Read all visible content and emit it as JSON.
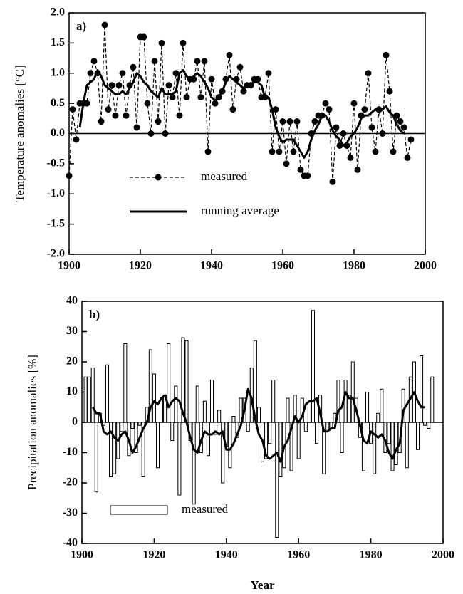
{
  "chart_data": [
    {
      "type": "line",
      "panel_label": "a)",
      "ylabel": "Temperature anomalies [°C]",
      "xlim": [
        1900,
        2000
      ],
      "ylim": [
        -2,
        2
      ],
      "xticks": [
        1900,
        1920,
        1940,
        1960,
        1980,
        2000
      ],
      "yticks": [
        {
          "value": -2,
          "label": "-2.0"
        },
        -1.5,
        {
          "value": -1,
          "label": "-1.0"
        },
        -0.5,
        {
          "value": 0,
          "label": "0.0"
        },
        0.5,
        {
          "value": 1,
          "label": "1.0"
        },
        1.5,
        {
          "value": 2,
          "label": "2.0"
        }
      ],
      "legend": "lower center",
      "x": [
        1900,
        1901,
        1902,
        1903,
        1904,
        1905,
        1906,
        1907,
        1908,
        1909,
        1910,
        1911,
        1912,
        1913,
        1914,
        1915,
        1916,
        1917,
        1918,
        1919,
        1920,
        1921,
        1922,
        1923,
        1924,
        1925,
        1926,
        1927,
        1928,
        1929,
        1930,
        1931,
        1932,
        1933,
        1934,
        1935,
        1936,
        1937,
        1938,
        1939,
        1940,
        1941,
        1942,
        1943,
        1944,
        1945,
        1946,
        1947,
        1948,
        1949,
        1950,
        1951,
        1952,
        1953,
        1954,
        1955,
        1956,
        1957,
        1958,
        1959,
        1960,
        1961,
        1962,
        1963,
        1964,
        1965,
        1966,
        1967,
        1968,
        1969,
        1970,
        1971,
        1972,
        1973,
        1974,
        1975,
        1976,
        1977,
        1978,
        1979,
        1980,
        1981,
        1982,
        1983,
        1984,
        1985,
        1986,
        1987,
        1988,
        1989,
        1990,
        1991,
        1992,
        1993,
        1994,
        1995,
        1996
      ],
      "series": [
        {
          "name": "measured",
          "type": "line",
          "color": "#000000",
          "dash": true,
          "marker": true,
          "values": [
            -0.7,
            0.4,
            -0.1,
            0.5,
            0.5,
            0.5,
            1.0,
            1.2,
            1.0,
            0.2,
            1.8,
            0.4,
            0.8,
            0.3,
            0.8,
            1.0,
            0.3,
            0.8,
            1.1,
            0.1,
            1.6,
            1.6,
            0.5,
            0.0,
            1.2,
            0.2,
            1.5,
            0.0,
            0.8,
            0.6,
            1.0,
            0.3,
            1.5,
            0.6,
            0.9,
            0.9,
            1.2,
            0.6,
            1.2,
            -0.3,
            0.9,
            0.5,
            0.6,
            0.7,
            0.9,
            1.3,
            0.4,
            0.9,
            1.1,
            0.7,
            0.8,
            0.8,
            0.9,
            0.9,
            0.6,
            0.6,
            1.0,
            -0.3,
            0.4,
            -0.3,
            0.2,
            -0.5,
            0.2,
            -0.3,
            0.2,
            -0.6,
            -0.7,
            -0.7,
            0.0,
            0.2,
            0.3,
            0.3,
            0.5,
            0.4,
            -0.8,
            0.1,
            -0.2,
            0.0,
            -0.2,
            -0.4,
            0.5,
            -0.6,
            0.3,
            0.4,
            1.0,
            0.1,
            -0.3,
            0.4,
            0.0,
            1.3,
            0.7,
            -0.3,
            0.3,
            0.2,
            0.1,
            -0.4,
            -0.1
          ]
        },
        {
          "name": "running average",
          "type": "line",
          "color": "#000000",
          "dash": false,
          "marker": false,
          "values": [
            null,
            null,
            null,
            0.1,
            0.5,
            0.8,
            0.85,
            0.9,
            1.05,
            0.95,
            0.8,
            0.75,
            0.7,
            0.65,
            0.65,
            0.7,
            0.65,
            0.75,
            0.85,
            1.0,
            0.95,
            0.85,
            0.8,
            0.7,
            0.65,
            0.6,
            0.75,
            0.65,
            0.65,
            0.65,
            0.7,
            1.0,
            1.05,
            0.95,
            0.9,
            0.95,
            1.0,
            0.95,
            0.85,
            0.75,
            0.6,
            0.55,
            0.6,
            0.7,
            0.85,
            0.95,
            0.9,
            0.85,
            0.8,
            0.75,
            0.8,
            0.8,
            0.85,
            0.85,
            0.8,
            0.6,
            0.6,
            0.4,
            0.1,
            -0.05,
            -0.15,
            -0.1,
            -0.1,
            -0.1,
            -0.2,
            -0.3,
            -0.4,
            -0.3,
            -0.1,
            0.05,
            0.15,
            0.3,
            0.3,
            0.2,
            0.05,
            -0.05,
            -0.1,
            -0.2,
            -0.15,
            -0.05,
            0.0,
            0.1,
            0.25,
            0.3,
            0.3,
            0.35,
            0.4,
            0.35,
            0.4,
            0.45,
            0.35,
            0.3,
            0.15,
            0.05,
            0.0,
            null,
            null
          ]
        }
      ]
    },
    {
      "type": "bar",
      "panel_label": "b)",
      "ylabel": "Precipitation anomalies [%]",
      "xlabel": "Year",
      "xlim": [
        1900,
        2000
      ],
      "ylim": [
        -40,
        40
      ],
      "xticks": [
        1900,
        1920,
        1940,
        1960,
        1980,
        2000
      ],
      "yticks": [
        -40,
        -30,
        -20,
        -10,
        0,
        10,
        20,
        30,
        40
      ],
      "legend": "lower left",
      "x": [
        1901,
        1902,
        1903,
        1904,
        1905,
        1906,
        1907,
        1908,
        1909,
        1910,
        1911,
        1912,
        1913,
        1914,
        1915,
        1916,
        1917,
        1918,
        1919,
        1920,
        1921,
        1922,
        1923,
        1924,
        1925,
        1926,
        1927,
        1928,
        1929,
        1930,
        1931,
        1932,
        1933,
        1934,
        1935,
        1936,
        1937,
        1938,
        1939,
        1940,
        1941,
        1942,
        1943,
        1944,
        1945,
        1946,
        1947,
        1948,
        1949,
        1950,
        1951,
        1952,
        1953,
        1954,
        1955,
        1956,
        1957,
        1958,
        1959,
        1960,
        1961,
        1962,
        1963,
        1964,
        1965,
        1966,
        1967,
        1968,
        1969,
        1970,
        1971,
        1972,
        1973,
        1974,
        1975,
        1976,
        1977,
        1978,
        1979,
        1980,
        1981,
        1982,
        1983,
        1984,
        1985,
        1986,
        1987,
        1988,
        1989,
        1990,
        1991,
        1992,
        1993,
        1994,
        1995,
        1996,
        1997
      ],
      "series": [
        {
          "name": "measured",
          "type": "bar",
          "color": "#000000",
          "fill": "#ffffff",
          "values": [
            15,
            15,
            18,
            -23,
            3,
            -1,
            19,
            -18,
            -17,
            -12,
            -3,
            26,
            -11,
            -2,
            -10,
            -1,
            -18,
            5,
            24,
            16,
            -15,
            8,
            9,
            26,
            -6,
            12,
            -24,
            28,
            27,
            -6,
            -27,
            12,
            -10,
            7,
            -11,
            14,
            -4,
            4,
            -20,
            -8,
            -15,
            2,
            -5,
            8,
            8,
            -3,
            18,
            27,
            5,
            -13,
            -12,
            -7,
            14,
            -38,
            -18,
            -15,
            8,
            -16,
            9,
            -12,
            8,
            -3,
            7,
            37,
            -7,
            9,
            -17,
            -3,
            -2,
            3,
            14,
            -10,
            14,
            9,
            20,
            8,
            -5,
            -16,
            10,
            -7,
            -17,
            3,
            11,
            -10,
            -7,
            -16,
            -14,
            -10,
            11,
            -15,
            15,
            20,
            -9,
            22,
            -1,
            -2,
            15
          ]
        },
        {
          "type": "line",
          "color": "#000000",
          "dash": false,
          "marker": false,
          "values": [
            null,
            null,
            5,
            3,
            3,
            -3,
            -4,
            -3,
            -5,
            -6,
            -4,
            -3,
            -6,
            -10,
            -8,
            -5,
            -2,
            0,
            5,
            7,
            6,
            8,
            9,
            5,
            7,
            8,
            7,
            3,
            0,
            -5,
            -9,
            -10,
            -6,
            -3,
            -4,
            -4,
            -3,
            -4,
            -3,
            -9,
            -9,
            -7,
            -4,
            -1,
            4,
            11,
            8,
            1,
            -4,
            -6,
            -11,
            -12,
            -11,
            -10,
            -13,
            -8,
            -6,
            -2,
            2,
            0,
            2,
            6,
            7,
            7,
            8,
            3,
            -3,
            -3,
            -2,
            -2,
            4,
            5,
            10,
            8,
            8,
            4,
            -1,
            -6,
            -7,
            -3,
            -4,
            -5,
            -4,
            -6,
            -10,
            -12,
            -9,
            -7,
            4,
            6,
            8,
            10,
            7,
            5,
            5,
            null,
            null
          ]
        }
      ]
    }
  ]
}
